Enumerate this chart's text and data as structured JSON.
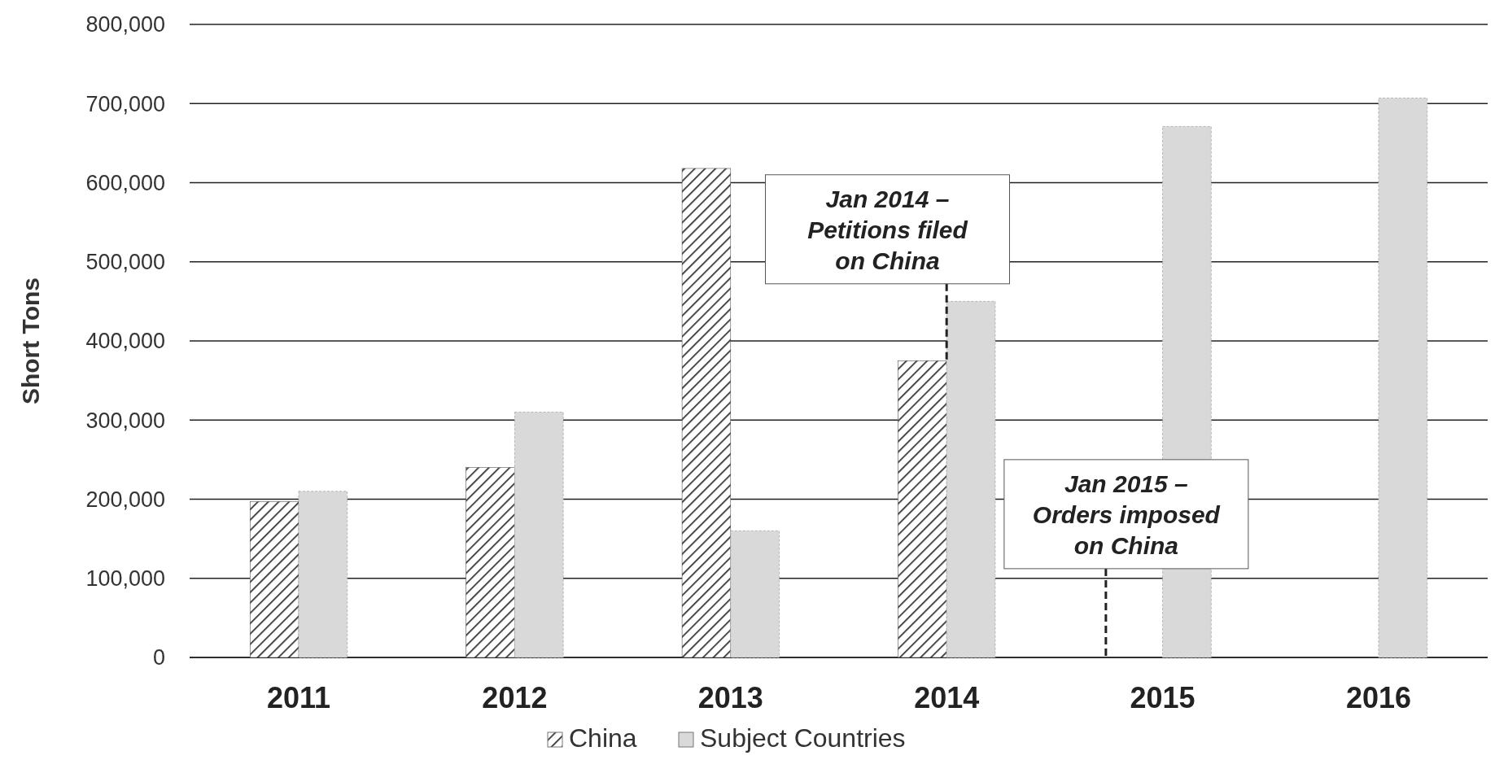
{
  "chart_data": {
    "type": "bar",
    "ylabel": "Short Tons",
    "categories": [
      "2011",
      "2012",
      "2013",
      "2014",
      "2015",
      "2016"
    ],
    "series": [
      {
        "name": "China",
        "color": "#333333",
        "values": [
          197000,
          240000,
          618000,
          375000,
          null,
          null
        ]
      },
      {
        "name": "Subject Countries",
        "color": "#d9d9d9",
        "values": [
          210000,
          310000,
          160000,
          450000,
          671000,
          707000
        ]
      }
    ],
    "ylim": [
      0,
      800000
    ],
    "yticks": [
      0,
      {
        "value": 100000,
        "label": "100,000"
      },
      {
        "value": 200000,
        "label": "200,000"
      },
      {
        "value": 300000,
        "label": "300,000"
      },
      {
        "value": 400000,
        "label": "400,000"
      },
      {
        "value": 500000,
        "label": "500,000"
      },
      {
        "value": 600000,
        "label": "600,000"
      },
      {
        "value": 700000,
        "label": "700,000"
      },
      {
        "value": 800000,
        "label": "800,000"
      }
    ],
    "grid": "y",
    "legend": "bottom",
    "annotations": [
      {
        "text": "Jan 2014 –\nPetitions filed\non China",
        "x": "2014",
        "y": 375000
      },
      "Jan 2015 –\nOrders imposed\non China"
    ]
  }
}
